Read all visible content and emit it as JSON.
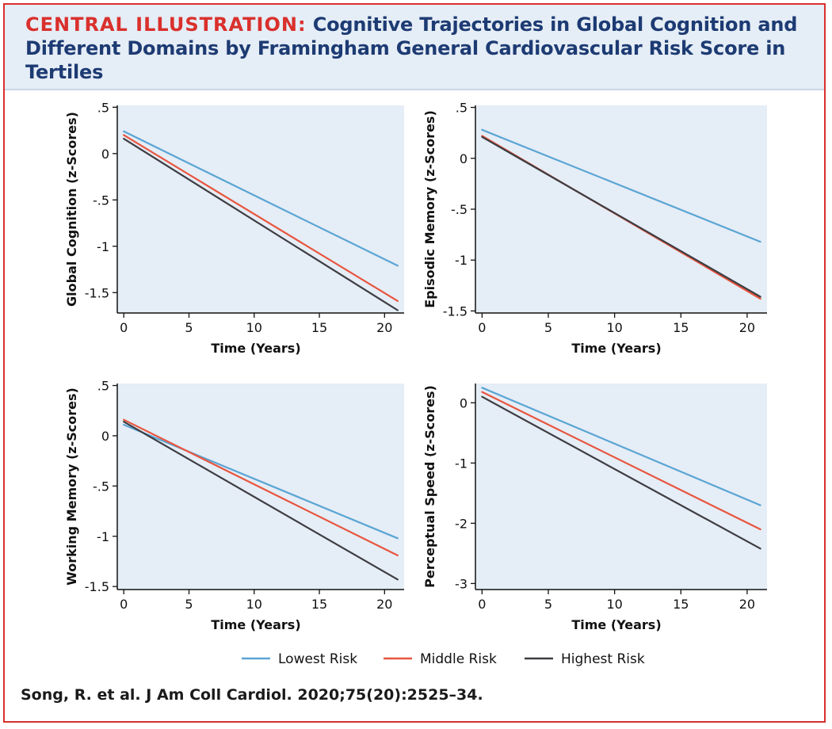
{
  "header": {
    "lead": "CENTRAL ILLUSTRATION:",
    "title": "Cognitive Trajectories in Global Cognition and Different Domains by Framingham General Cardiovascular Risk Score in Tertiles"
  },
  "citation": "Song, R. et al. J Am Coll Cardiol. 2020;75(20):2525–34.",
  "colors": {
    "frame": "#d9302c",
    "title": "#1d3b73",
    "plot_bg": "#e5edf6",
    "lowest": "#5aa5d4",
    "middle": "#e8553f",
    "highest": "#3d3d42"
  },
  "legend": [
    {
      "label": "Lowest Risk",
      "color": "#5aa5d4"
    },
    {
      "label": "Middle Risk",
      "color": "#e8553f"
    },
    {
      "label": "Highest Risk",
      "color": "#3d3d42"
    }
  ],
  "chart_data": [
    {
      "type": "line",
      "title": "",
      "xlabel": "Time (Years)",
      "ylabel": "Global Cognition (z-Scores)",
      "xlim": [
        -0.5,
        21.5
      ],
      "ylim": [
        -1.72,
        0.52
      ],
      "xticks": [
        0,
        5,
        10,
        15,
        20
      ],
      "yticks": [
        0.5,
        0,
        -0.5,
        -1,
        -1.5
      ],
      "yticklabels": [
        ".5",
        "0",
        "-.5",
        "-1",
        "-1.5"
      ],
      "series": [
        {
          "name": "Lowest Risk",
          "x": [
            0,
            21
          ],
          "y": [
            0.24,
            -1.21
          ]
        },
        {
          "name": "Middle Risk",
          "x": [
            0,
            21
          ],
          "y": [
            0.2,
            -1.59
          ]
        },
        {
          "name": "Highest Risk",
          "x": [
            0,
            21
          ],
          "y": [
            0.16,
            -1.69
          ]
        }
      ]
    },
    {
      "type": "line",
      "title": "",
      "xlabel": "Time (Years)",
      "ylabel": "Episodic Memory (z-Scores)",
      "xlim": [
        -0.5,
        21.5
      ],
      "ylim": [
        -1.52,
        0.52
      ],
      "xticks": [
        0,
        5,
        10,
        15,
        20
      ],
      "yticks": [
        0.5,
        0,
        -0.5,
        -1,
        -1.5
      ],
      "yticklabels": [
        ".5",
        "0",
        "-.5",
        "-1",
        "-1.5"
      ],
      "series": [
        {
          "name": "Lowest Risk",
          "x": [
            0,
            21
          ],
          "y": [
            0.28,
            -0.82
          ]
        },
        {
          "name": "Middle Risk",
          "x": [
            0,
            21
          ],
          "y": [
            0.22,
            -1.38
          ]
        },
        {
          "name": "Highest Risk",
          "x": [
            0,
            21
          ],
          "y": [
            0.21,
            -1.36
          ]
        }
      ]
    },
    {
      "type": "line",
      "title": "",
      "xlabel": "Time (Years)",
      "ylabel": "Working Memory (z-Scores)",
      "xlim": [
        -0.5,
        21.5
      ],
      "ylim": [
        -1.53,
        0.52
      ],
      "xticks": [
        0,
        5,
        10,
        15,
        20
      ],
      "yticks": [
        0.5,
        0,
        -0.5,
        -1,
        -1.5
      ],
      "yticklabels": [
        ".5",
        "0",
        "-.5",
        "-1",
        "-1.5"
      ],
      "series": [
        {
          "name": "Lowest Risk",
          "x": [
            0,
            21
          ],
          "y": [
            0.11,
            -1.02
          ]
        },
        {
          "name": "Middle Risk",
          "x": [
            0,
            21
          ],
          "y": [
            0.16,
            -1.19
          ]
        },
        {
          "name": "Highest Risk",
          "x": [
            0,
            21
          ],
          "y": [
            0.14,
            -1.43
          ]
        }
      ]
    },
    {
      "type": "line",
      "title": "",
      "xlabel": "Time (Years)",
      "ylabel": "Perceptual Speed (z-Scores)",
      "xlim": [
        -0.5,
        21.5
      ],
      "ylim": [
        -3.1,
        0.32
      ],
      "xticks": [
        0,
        5,
        10,
        15,
        20
      ],
      "yticks": [
        0,
        -1,
        -2,
        -3
      ],
      "yticklabels": [
        "0",
        "-1",
        "-2",
        "-3"
      ],
      "series": [
        {
          "name": "Lowest Risk",
          "x": [
            0,
            21
          ],
          "y": [
            0.25,
            -1.7
          ]
        },
        {
          "name": "Middle Risk",
          "x": [
            0,
            21
          ],
          "y": [
            0.18,
            -2.1
          ]
        },
        {
          "name": "Highest Risk",
          "x": [
            0,
            21
          ],
          "y": [
            0.1,
            -2.42
          ]
        }
      ]
    }
  ]
}
